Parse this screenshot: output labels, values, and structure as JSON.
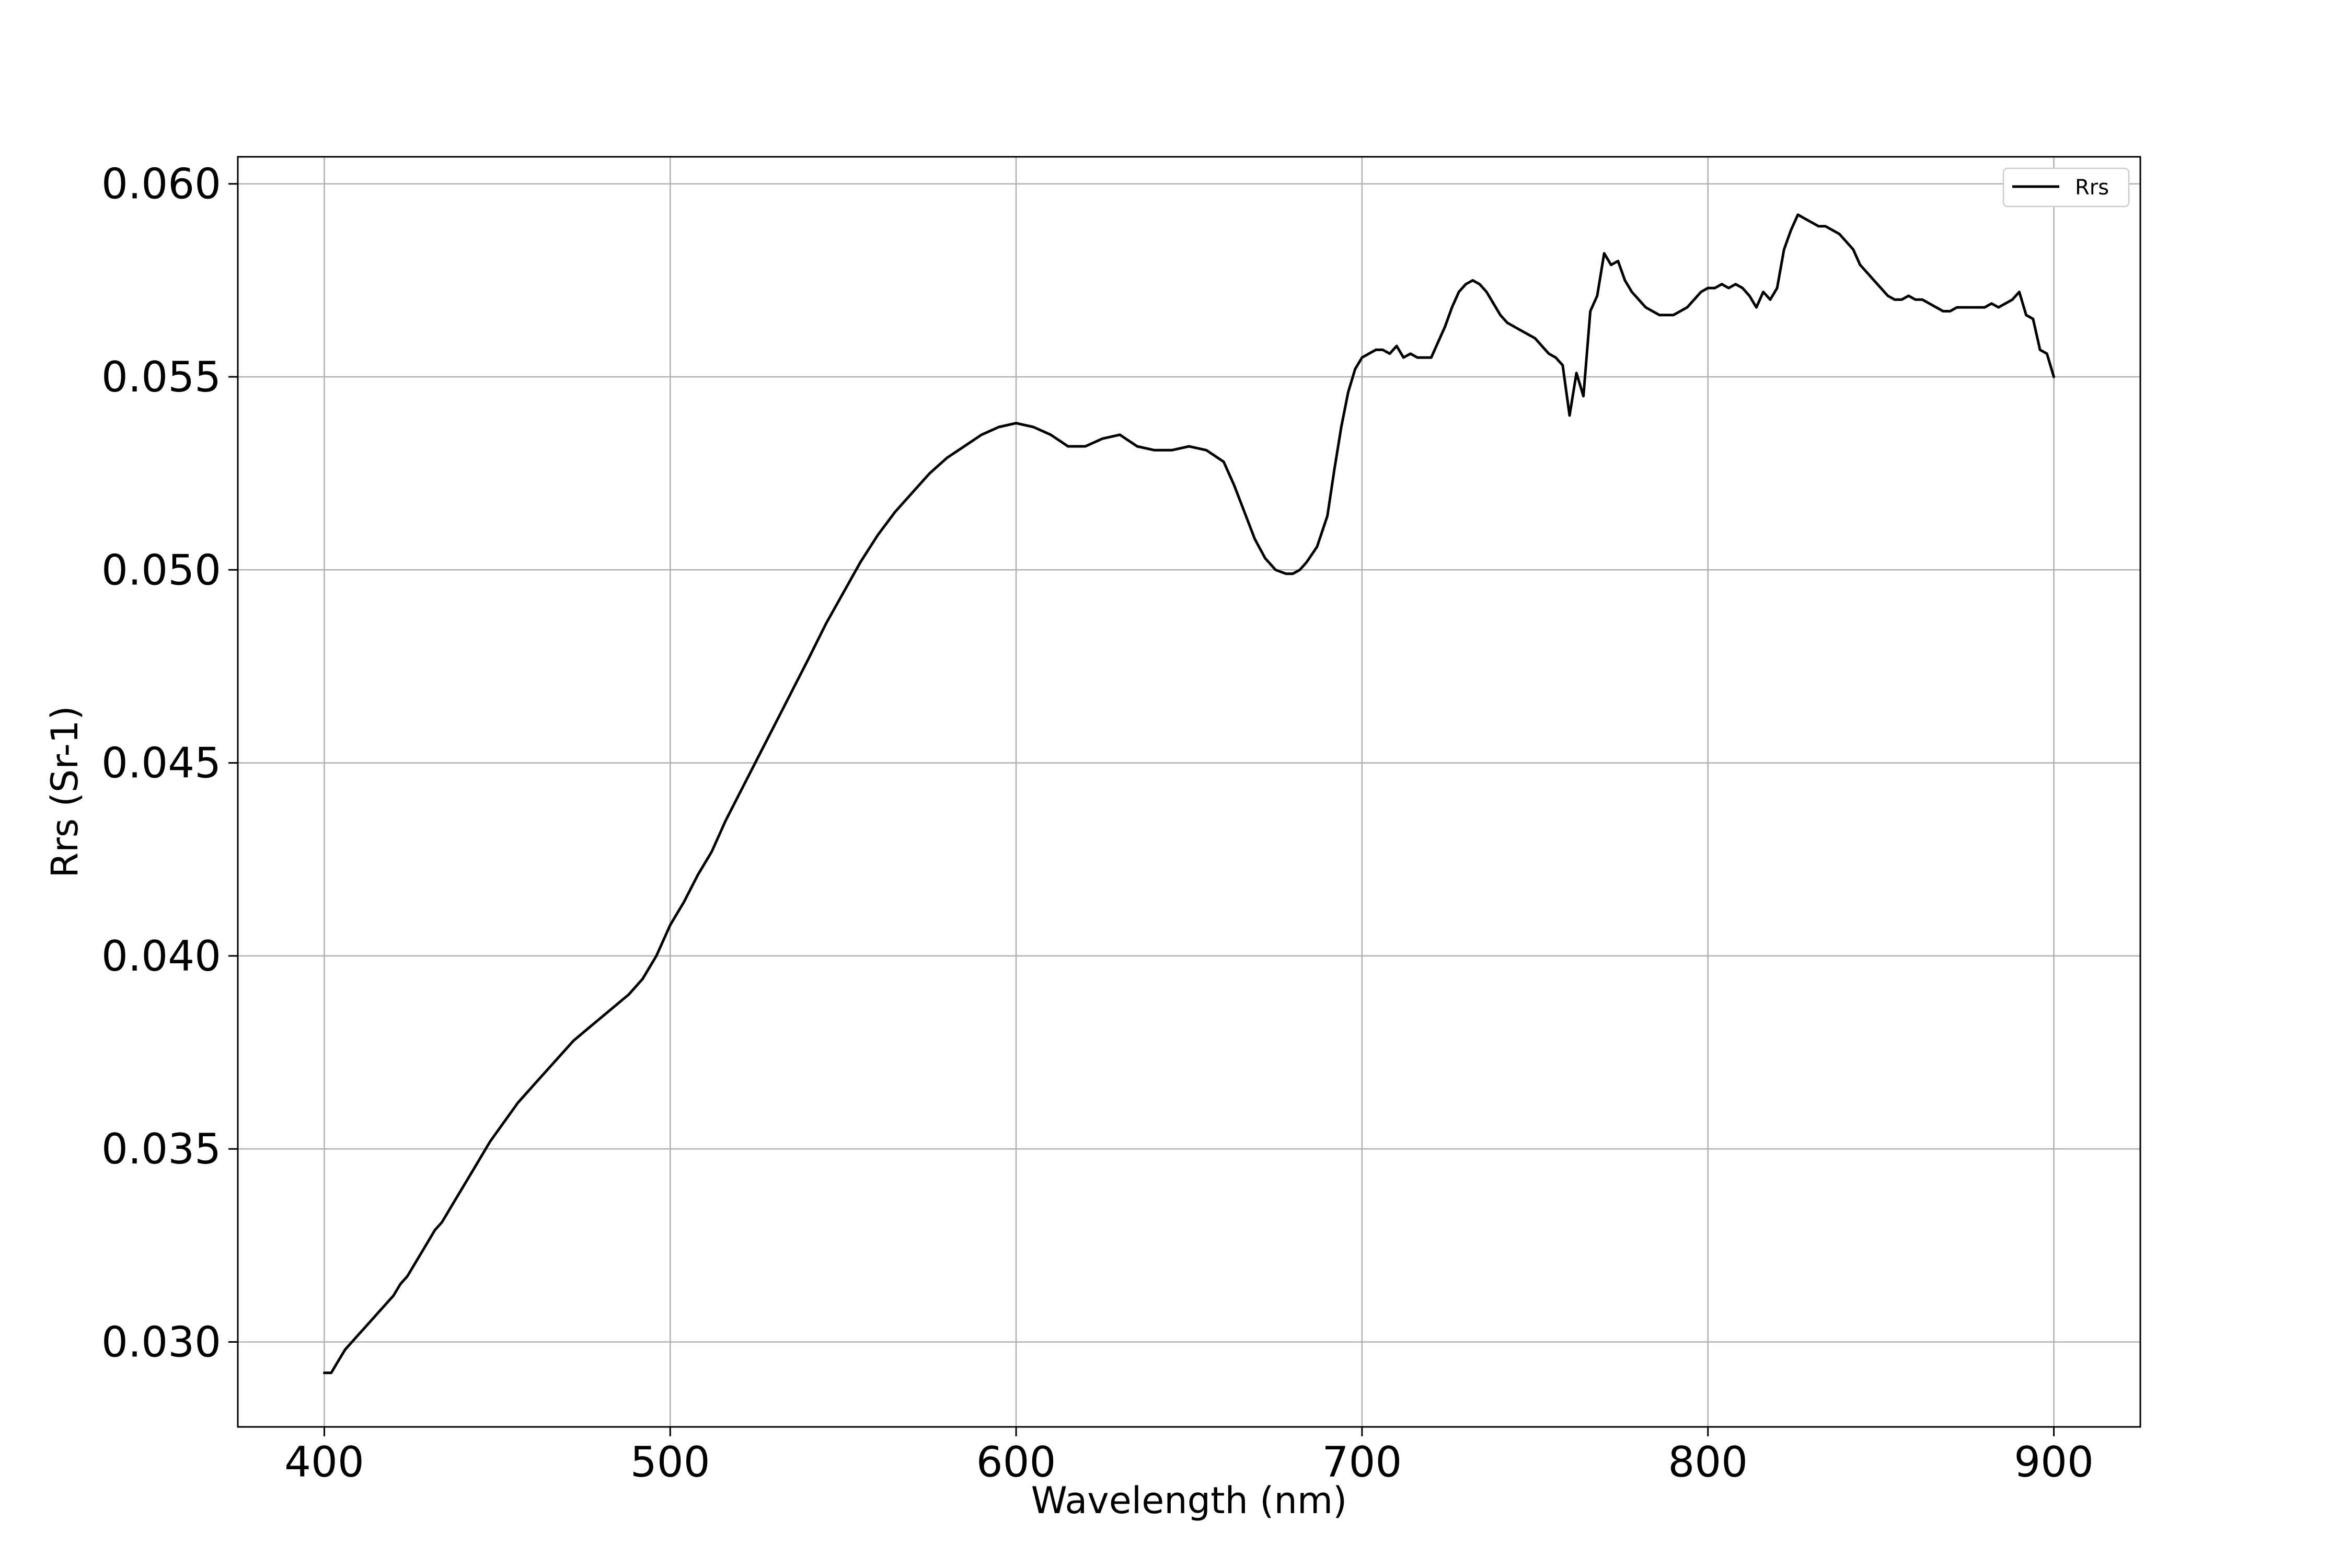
{
  "chart_data": {
    "type": "line",
    "title": "",
    "xlabel": "Wavelength (nm)",
    "ylabel": "Rrs (Sr-1)",
    "xlim": [
      375,
      925
    ],
    "ylim": [
      0.0278,
      0.0607
    ],
    "xticks": [
      {
        "value": 400,
        "label": "400"
      },
      {
        "value": 500,
        "label": "500"
      },
      {
        "value": 600,
        "label": "600"
      },
      {
        "value": 700,
        "label": "700"
      },
      {
        "value": 800,
        "label": "800"
      },
      {
        "value": 900,
        "label": "900"
      }
    ],
    "yticks": [
      {
        "value": 0.03,
        "label": "0.030"
      },
      {
        "value": 0.035,
        "label": "0.035"
      },
      {
        "value": 0.04,
        "label": "0.040"
      },
      {
        "value": 0.045,
        "label": "0.045"
      },
      {
        "value": 0.05,
        "label": "0.050"
      },
      {
        "value": 0.055,
        "label": "0.055"
      },
      {
        "value": 0.06,
        "label": "0.060"
      }
    ],
    "grid": true,
    "legend": {
      "placement": "top-right"
    },
    "series": [
      {
        "name": "Rrs",
        "color": "#000000",
        "x": [
          400,
          402,
          404,
          406,
          408,
          410,
          412,
          414,
          416,
          418,
          420,
          422,
          424,
          426,
          428,
          430,
          432,
          434,
          436,
          438,
          440,
          444,
          448,
          452,
          456,
          460,
          464,
          468,
          472,
          476,
          480,
          484,
          488,
          492,
          496,
          500,
          504,
          508,
          512,
          516,
          520,
          524,
          528,
          532,
          536,
          540,
          545,
          550,
          555,
          560,
          565,
          570,
          575,
          580,
          585,
          590,
          595,
          600,
          605,
          610,
          615,
          620,
          625,
          630,
          635,
          640,
          645,
          650,
          655,
          660,
          663,
          666,
          669,
          672,
          675,
          678,
          680,
          682,
          684,
          687,
          690,
          692,
          694,
          696,
          698,
          700,
          702,
          704,
          706,
          708,
          710,
          712,
          714,
          716,
          718,
          720,
          722,
          724,
          726,
          728,
          730,
          732,
          734,
          736,
          738,
          740,
          742,
          744,
          746,
          748,
          750,
          752,
          754,
          756,
          758,
          760,
          762,
          764,
          766,
          768,
          770,
          772,
          774,
          776,
          778,
          780,
          782,
          784,
          786,
          788,
          790,
          792,
          794,
          796,
          798,
          800,
          802,
          804,
          806,
          808,
          810,
          812,
          814,
          816,
          818,
          820,
          822,
          824,
          826,
          828,
          830,
          832,
          834,
          836,
          838,
          840,
          842,
          844,
          846,
          848,
          850,
          852,
          854,
          856,
          858,
          860,
          862,
          864,
          866,
          868,
          870,
          872,
          874,
          876,
          878,
          880,
          882,
          884,
          886,
          888,
          890,
          892,
          894,
          896,
          898,
          900
        ],
        "y": [
          0.0292,
          0.0292,
          0.0295,
          0.0298,
          0.03,
          0.0302,
          0.0304,
          0.0306,
          0.0308,
          0.031,
          0.0312,
          0.0315,
          0.0317,
          0.032,
          0.0323,
          0.0326,
          0.0329,
          0.0331,
          0.0334,
          0.0337,
          0.034,
          0.0346,
          0.0352,
          0.0357,
          0.0362,
          0.0366,
          0.037,
          0.0374,
          0.0378,
          0.0381,
          0.0384,
          0.0387,
          0.039,
          0.0394,
          0.04,
          0.0408,
          0.0414,
          0.0421,
          0.0427,
          0.0435,
          0.0442,
          0.0449,
          0.0456,
          0.0463,
          0.047,
          0.0477,
          0.0486,
          0.0494,
          0.0502,
          0.0509,
          0.0515,
          0.052,
          0.0525,
          0.0529,
          0.0532,
          0.0535,
          0.0537,
          0.0538,
          0.0537,
          0.0535,
          0.0532,
          0.0532,
          0.0534,
          0.0535,
          0.0532,
          0.0531,
          0.0531,
          0.0532,
          0.0531,
          0.0528,
          0.0522,
          0.0515,
          0.0508,
          0.0503,
          0.05,
          0.0499,
          0.0499,
          0.05,
          0.0502,
          0.0506,
          0.0514,
          0.0526,
          0.0537,
          0.0546,
          0.0552,
          0.0555,
          0.0556,
          0.0557,
          0.0557,
          0.0556,
          0.0558,
          0.0555,
          0.0556,
          0.0555,
          0.0555,
          0.0555,
          0.0559,
          0.0563,
          0.0568,
          0.0572,
          0.0574,
          0.0575,
          0.0574,
          0.0572,
          0.0569,
          0.0566,
          0.0564,
          0.0563,
          0.0562,
          0.0561,
          0.056,
          0.0558,
          0.0556,
          0.0555,
          0.0553,
          0.054,
          0.0551,
          0.0545,
          0.0567,
          0.0571,
          0.0582,
          0.0579,
          0.058,
          0.0575,
          0.0572,
          0.057,
          0.0568,
          0.0567,
          0.0566,
          0.0566,
          0.0566,
          0.0567,
          0.0568,
          0.057,
          0.0572,
          0.0573,
          0.0573,
          0.0574,
          0.0573,
          0.0574,
          0.0573,
          0.0571,
          0.0568,
          0.0572,
          0.057,
          0.0573,
          0.0583,
          0.0588,
          0.0592,
          0.0591,
          0.059,
          0.0589,
          0.0589,
          0.0588,
          0.0587,
          0.0585,
          0.0583,
          0.0579,
          0.0577,
          0.0575,
          0.0573,
          0.0571,
          0.057,
          0.057,
          0.0571,
          0.057,
          0.057,
          0.0569,
          0.0568,
          0.0567,
          0.0567,
          0.0568,
          0.0568,
          0.0568,
          0.0568,
          0.0568,
          0.0569,
          0.0568,
          0.0569,
          0.057,
          0.0572,
          0.0566,
          0.0565,
          0.0557,
          0.0556,
          0.055
        ]
      }
    ]
  }
}
